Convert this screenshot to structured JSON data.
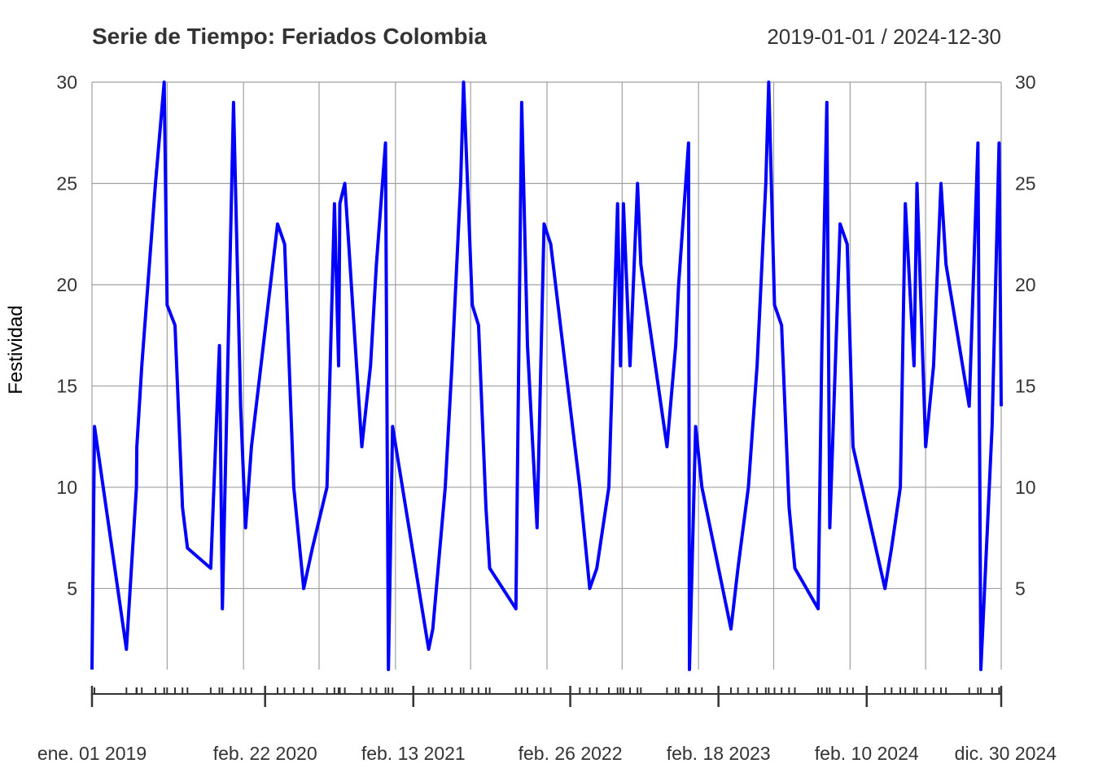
{
  "chart_data": {
    "type": "line",
    "title": "Serie de Tiempo: Feriados Colombia",
    "date_range_label": "2019-01-01 / 2024-12-30",
    "ylabel": "Festividad",
    "xlabel": "",
    "ylim": [
      1,
      30
    ],
    "yticks": [
      "5",
      "10",
      "15",
      "20",
      "25",
      "30"
    ],
    "grid": true,
    "legend": "none",
    "line_color": "#0000FF",
    "grid_color": "#A0A0A0",
    "x_tick_labels": [
      {
        "date": "2019-01-01",
        "label": "ene. 01 2019"
      },
      {
        "date": "2020-02-22",
        "label": "feb. 22 2020"
      },
      {
        "date": "2021-02-13",
        "label": "feb. 13 2021"
      },
      {
        "date": "2022-02-26",
        "label": "feb. 26 2022"
      },
      {
        "date": "2023-02-18",
        "label": "feb. 18 2023"
      },
      {
        "date": "2024-02-10",
        "label": "feb. 10 2024"
      },
      {
        "date": "2024-12-30",
        "label": "dic. 30 2024"
      }
    ],
    "series": [
      {
        "points": [
          [
            "2019-01-01",
            1
          ],
          [
            "2019-01-07",
            13
          ],
          [
            "2019-03-25",
            2
          ],
          [
            "2019-04-18",
            10
          ],
          [
            "2019-04-19",
            12
          ],
          [
            "2019-05-01",
            16
          ],
          [
            "2019-06-03",
            25
          ],
          [
            "2019-06-24",
            30
          ],
          [
            "2019-07-01",
            19
          ],
          [
            "2019-07-20",
            18
          ],
          [
            "2019-08-07",
            9
          ],
          [
            "2019-08-19",
            7
          ],
          [
            "2019-10-14",
            6
          ],
          [
            "2019-11-04",
            17
          ],
          [
            "2019-11-11",
            4
          ],
          [
            "2019-12-08",
            29
          ],
          [
            "2019-12-25",
            14
          ],
          [
            "2020-01-06",
            8
          ],
          [
            "2020-01-20",
            12
          ],
          [
            "2020-03-23",
            23
          ],
          [
            "2020-04-09",
            22
          ],
          [
            "2020-05-01",
            10
          ],
          [
            "2020-05-25",
            5
          ],
          [
            "2020-06-15",
            7
          ],
          [
            "2020-07-20",
            10
          ],
          [
            "2020-08-07",
            24
          ],
          [
            "2020-08-17",
            16
          ],
          [
            "2020-08-20",
            24
          ],
          [
            "2020-09-01",
            25
          ],
          [
            "2020-10-12",
            12
          ],
          [
            "2020-11-02",
            16
          ],
          [
            "2020-11-16",
            21
          ],
          [
            "2020-12-08",
            27
          ],
          [
            "2020-12-15",
            1
          ],
          [
            "2020-12-25",
            13
          ],
          [
            "2021-03-22",
            2
          ],
          [
            "2021-04-01",
            3
          ],
          [
            "2021-05-01",
            10
          ],
          [
            "2021-05-17",
            16
          ],
          [
            "2021-06-07",
            25
          ],
          [
            "2021-06-14",
            30
          ],
          [
            "2021-07-05",
            19
          ],
          [
            "2021-07-20",
            18
          ],
          [
            "2021-08-07",
            9
          ],
          [
            "2021-08-16",
            6
          ],
          [
            "2021-10-18",
            4
          ],
          [
            "2021-11-01",
            29
          ],
          [
            "2021-11-15",
            17
          ],
          [
            "2021-12-08",
            8
          ],
          [
            "2021-12-25",
            23
          ],
          [
            "2022-01-10",
            22
          ],
          [
            "2022-03-21",
            10
          ],
          [
            "2022-04-14",
            5
          ],
          [
            "2022-05-01",
            6
          ],
          [
            "2022-05-30",
            10
          ],
          [
            "2022-06-20",
            24
          ],
          [
            "2022-06-27",
            16
          ],
          [
            "2022-07-04",
            24
          ],
          [
            "2022-07-20",
            16
          ],
          [
            "2022-08-07",
            25
          ],
          [
            "2022-08-15",
            21
          ],
          [
            "2022-10-17",
            12
          ],
          [
            "2022-11-07",
            17
          ],
          [
            "2022-11-14",
            20
          ],
          [
            "2022-12-08",
            27
          ],
          [
            "2022-12-10",
            1
          ],
          [
            "2022-12-25",
            13
          ],
          [
            "2023-01-09",
            10
          ],
          [
            "2023-03-20",
            3
          ],
          [
            "2023-04-06",
            6
          ],
          [
            "2023-05-01",
            10
          ],
          [
            "2023-05-22",
            16
          ],
          [
            "2023-06-12",
            25
          ],
          [
            "2023-06-19",
            30
          ],
          [
            "2023-07-03",
            19
          ],
          [
            "2023-07-20",
            18
          ],
          [
            "2023-08-07",
            9
          ],
          [
            "2023-08-21",
            6
          ],
          [
            "2023-10-16",
            4
          ],
          [
            "2023-10-25",
            17
          ],
          [
            "2023-11-06",
            29
          ],
          [
            "2023-11-13",
            8
          ],
          [
            "2023-12-08",
            23
          ],
          [
            "2023-12-25",
            22
          ],
          [
            "2024-01-08",
            12
          ],
          [
            "2024-03-25",
            5
          ],
          [
            "2024-04-10",
            7
          ],
          [
            "2024-05-01",
            10
          ],
          [
            "2024-05-13",
            24
          ],
          [
            "2024-06-03",
            16
          ],
          [
            "2024-06-10",
            25
          ],
          [
            "2024-07-01",
            12
          ],
          [
            "2024-07-20",
            16
          ],
          [
            "2024-08-07",
            25
          ],
          [
            "2024-08-19",
            21
          ],
          [
            "2024-10-14",
            14
          ],
          [
            "2024-11-04",
            27
          ],
          [
            "2024-11-11",
            1
          ],
          [
            "2024-12-08",
            13
          ],
          [
            "2024-12-25",
            27
          ],
          [
            "2024-12-30",
            14
          ]
        ]
      }
    ]
  }
}
